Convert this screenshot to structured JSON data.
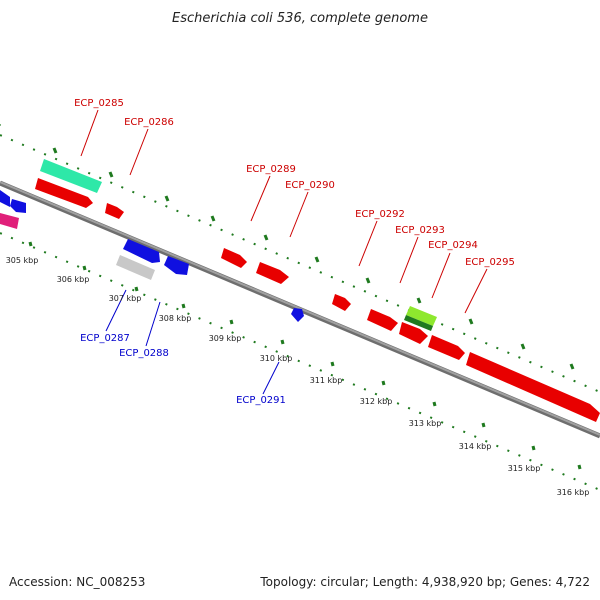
{
  "title": "Escherichia coli 536, complete genome",
  "footer": {
    "accession": "Accession: NC_008253",
    "summary": "Topology: circular; Length: 4,938,920 bp; Genes: 4,722"
  },
  "colors": {
    "backbone": "#8a8a8a",
    "tick": "#1f7a1f",
    "forward_gene": "#ff0000",
    "reverse_gene": "#0000ff",
    "forward_label": "#cc0000",
    "reverse_label": "#0000cc"
  },
  "kbp_labels": [
    "305 kbp",
    "306 kbp",
    "307 kbp",
    "308 kbp",
    "309 kbp",
    "310 kbp",
    "311 kbp",
    "312 kbp",
    "313 kbp",
    "314 kbp",
    "315 kbp",
    "316 kbp"
  ],
  "forward_genes": [
    "ECP_0285",
    "ECP_0286",
    "ECP_0289",
    "ECP_0290",
    "ECP_0292",
    "ECP_0293",
    "ECP_0294",
    "ECP_0295"
  ],
  "reverse_genes": [
    "ECP_0287",
    "ECP_0288",
    "ECP_0291"
  ]
}
